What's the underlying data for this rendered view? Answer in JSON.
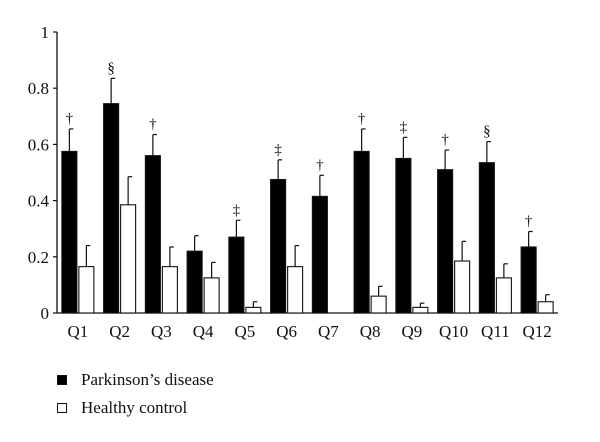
{
  "chart_data": {
    "type": "bar",
    "categories": [
      "Q1",
      "Q2",
      "Q3",
      "Q4",
      "Q5",
      "Q6",
      "Q7",
      "Q8",
      "Q9",
      "Q10",
      "Q11",
      "Q12"
    ],
    "series": [
      {
        "name": "Parkinson’s disease",
        "color": "#000000",
        "values": [
          0.575,
          0.745,
          0.56,
          0.22,
          0.27,
          0.475,
          0.415,
          0.575,
          0.55,
          0.51,
          0.535,
          0.235
        ],
        "errors": [
          0.08,
          0.09,
          0.075,
          0.055,
          0.06,
          0.07,
          0.075,
          0.08,
          0.075,
          0.07,
          0.075,
          0.055
        ]
      },
      {
        "name": "Healthy control",
        "color": "#ffffff",
        "values": [
          0.165,
          0.385,
          0.165,
          0.125,
          0.02,
          0.165,
          0,
          0.06,
          0.02,
          0.185,
          0.125,
          0.04
        ],
        "errors": [
          0.075,
          0.1,
          0.07,
          0.055,
          0.02,
          0.075,
          0,
          0.035,
          0.015,
          0.07,
          0.05,
          0.025
        ]
      }
    ],
    "significance_marks": [
      "†",
      "§",
      "†",
      "",
      "‡",
      "‡",
      "†",
      "†",
      "‡",
      "†",
      "§",
      "†"
    ],
    "yticks": [
      "0",
      "0.2",
      "0.4",
      "0.6",
      "0.8",
      "1"
    ],
    "ylim": [
      0,
      1
    ],
    "xlabel": "",
    "ylabel": "",
    "title": "",
    "grid": false,
    "legend_position": "bottom-left"
  }
}
